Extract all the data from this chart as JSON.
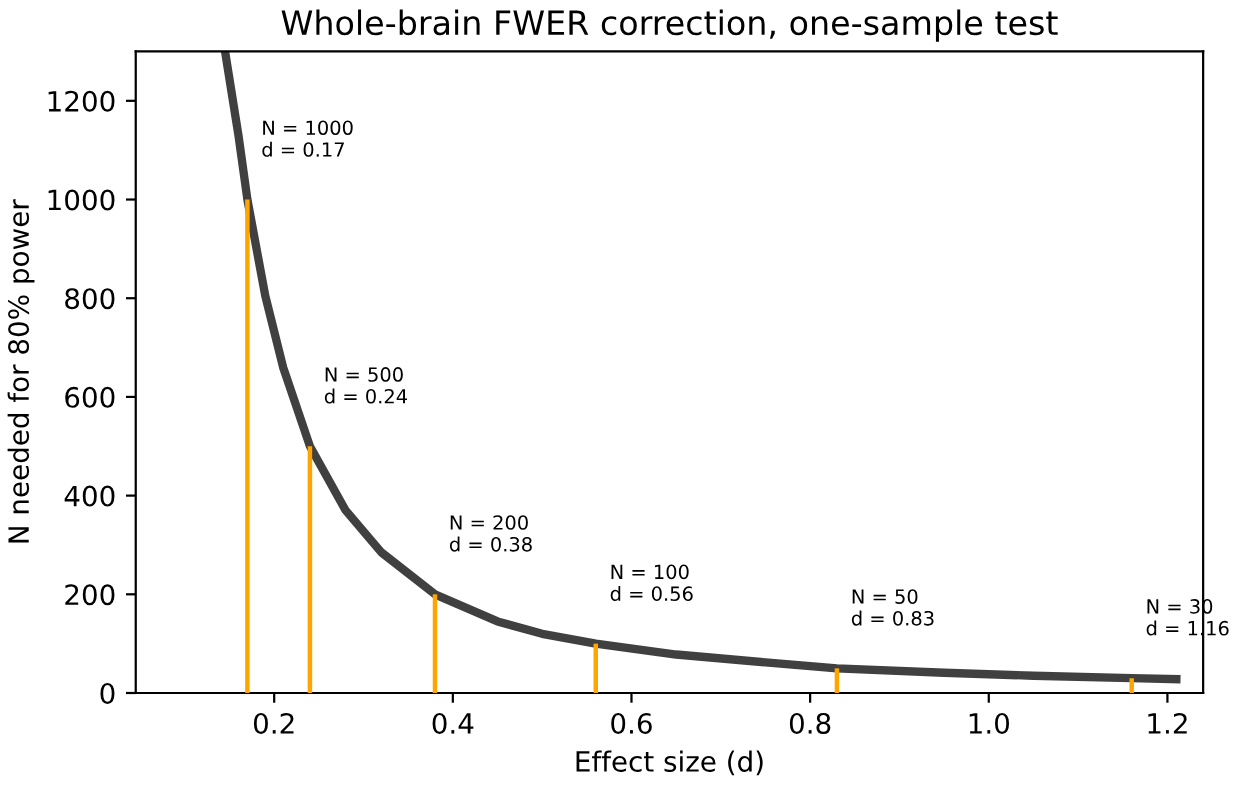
{
  "chart_data": {
    "type": "line",
    "title": "Whole-brain FWER correction, one-sample test",
    "xlabel": "Effect size (d)",
    "ylabel": "N needed for 80% power",
    "series": [
      {
        "color": "#404040",
        "x": [
          0.145,
          0.16,
          0.17,
          0.19,
          0.21,
          0.24,
          0.28,
          0.32,
          0.38,
          0.45,
          0.5,
          0.56,
          0.65,
          0.75,
          0.83,
          0.95,
          1.05,
          1.16,
          1.21
        ],
        "values": [
          1300,
          1130,
          1000,
          805,
          660,
          500,
          370,
          285,
          200,
          145,
          120,
          100,
          78,
          62,
          50,
          41,
          35,
          30,
          28
        ]
      },
      {
        "type": "bar",
        "color": "#ffa500",
        "x": [
          0.17,
          0.24,
          0.38,
          0.56,
          0.83,
          1.16
        ],
        "values": [
          1000,
          500,
          200,
          100,
          50,
          30
        ]
      }
    ],
    "annotations": [
      {
        "text": "N = 1000\nd = 0.17",
        "x": 0.17,
        "y": 1000
      },
      {
        "text": "N = 500\nd = 0.24",
        "x": 0.24,
        "y": 500
      },
      {
        "text": "N = 200\nd = 0.38",
        "x": 0.38,
        "y": 200
      },
      {
        "text": "N = 100\nd = 0.56",
        "x": 0.56,
        "y": 100
      },
      {
        "text": "N = 50\nd = 0.83",
        "x": 0.83,
        "y": 50
      },
      {
        "text": "N = 30\nd = 1.16",
        "x": 1.16,
        "y": 30
      }
    ],
    "xlim": [
      0.045,
      1.24
    ],
    "xticks": [
      {
        "value": 0.2,
        "label": "0.2"
      },
      {
        "value": 0.4,
        "label": "0.4"
      },
      {
        "value": 0.6,
        "label": "0.6"
      },
      {
        "value": 0.8,
        "label": "0.8"
      },
      {
        "value": 1.0,
        "label": "1.0"
      },
      {
        "value": 1.2,
        "label": "1.2"
      }
    ],
    "ylim": [
      0,
      1300
    ],
    "yticks": [
      0,
      200,
      400,
      600,
      800,
      1000,
      1200
    ],
    "grid": false,
    "legend": false
  }
}
